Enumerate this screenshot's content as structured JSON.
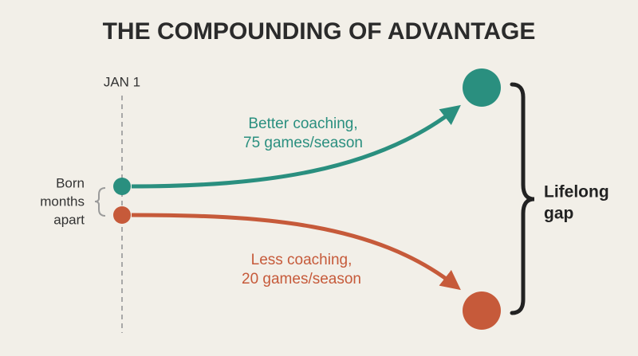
{
  "title": "THE COMPOUNDING OF ADVANTAGE",
  "marker": "JAN 1",
  "start_note": [
    "Born",
    "months",
    "apart"
  ],
  "paths": [
    {
      "label": [
        "Better coaching,",
        "75 games/season"
      ]
    },
    {
      "label": [
        "Less coaching,",
        "20 games/season"
      ]
    }
  ],
  "outcome": [
    "Lifelong",
    "gap"
  ]
}
